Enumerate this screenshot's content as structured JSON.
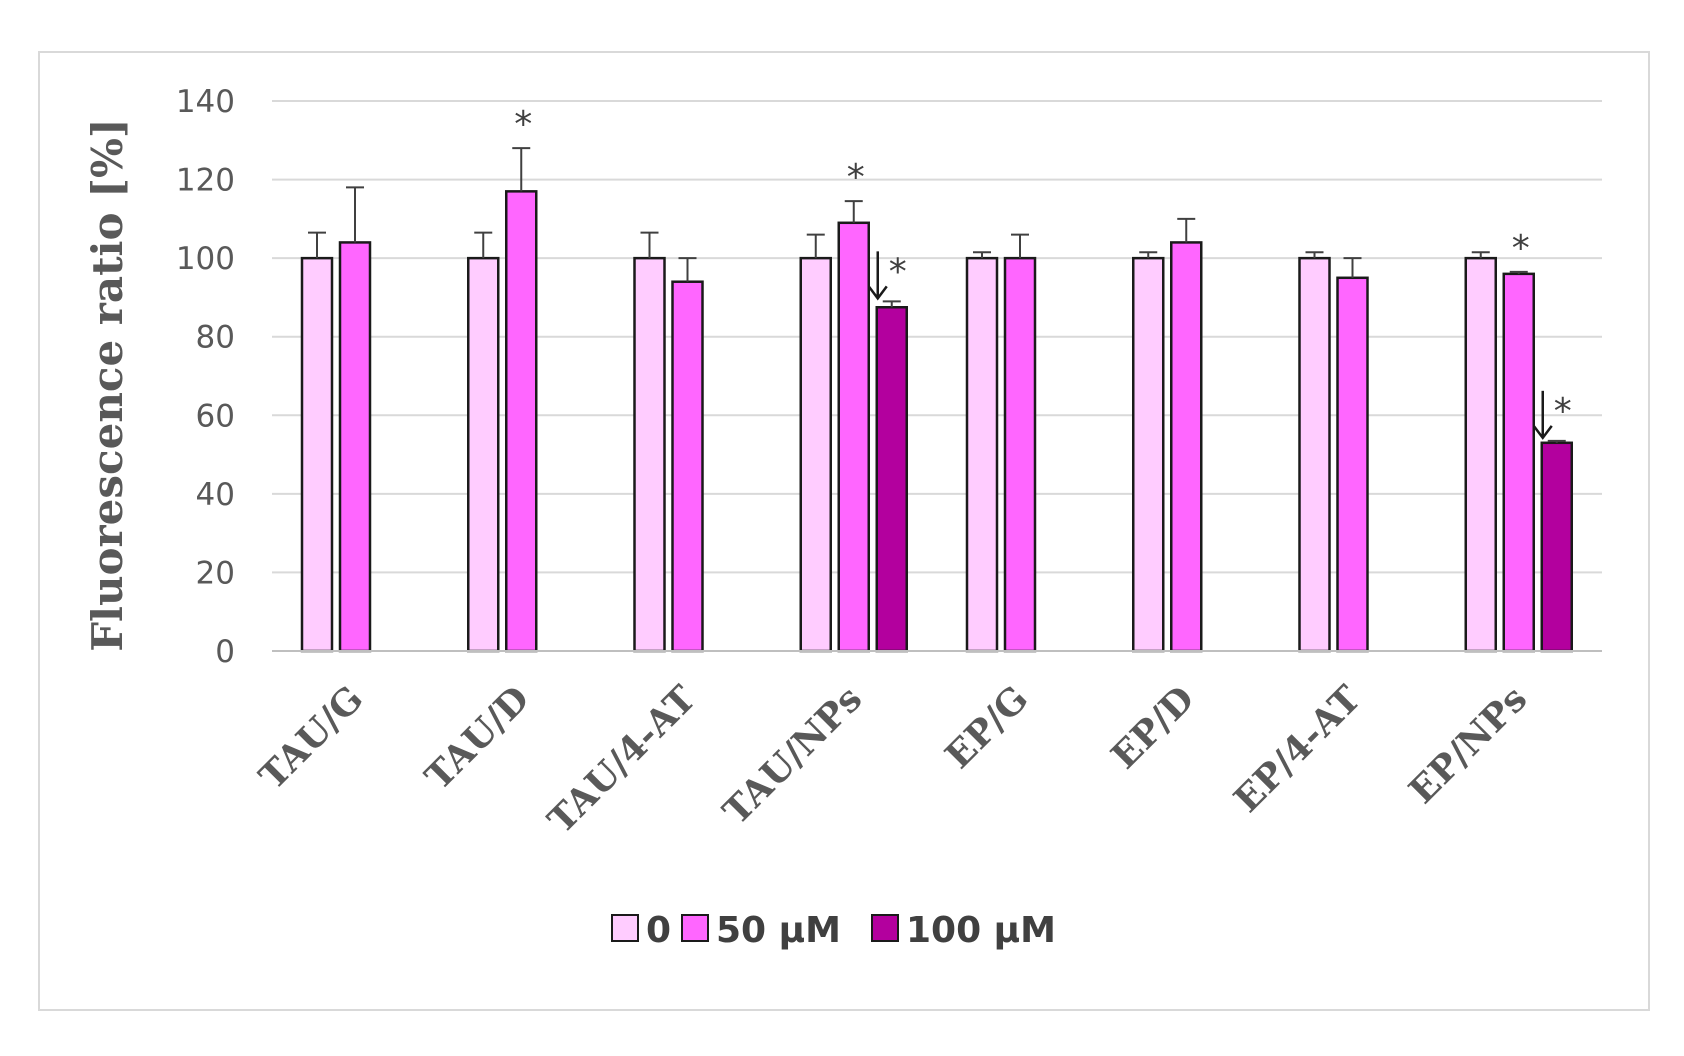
{
  "chart_data": {
    "type": "bar",
    "ylabel": "Fluorescence ratio [%]",
    "xlabel": "",
    "ylim": [
      0,
      140
    ],
    "yticks": [
      0,
      20,
      40,
      60,
      80,
      100,
      120,
      140
    ],
    "grid": true,
    "legend_position": "bottom",
    "categories": [
      "TAU/G",
      "TAU/D",
      "TAU/4-AT",
      "TAU/NPs",
      "EP/G",
      "EP/D",
      "EP/4-AT",
      "EP/NPs"
    ],
    "series": [
      {
        "name": "0",
        "color": "#ffccff",
        "values": [
          100,
          100,
          100,
          100,
          100,
          100,
          100,
          100
        ],
        "errors": [
          6.5,
          6.5,
          6.5,
          6,
          1.5,
          1.5,
          1.5,
          1.5
        ]
      },
      {
        "name": "50 µM",
        "color": "#ff66ff",
        "values": [
          104,
          117,
          94,
          109,
          100,
          104,
          95,
          96
        ],
        "errors": [
          14,
          11,
          6,
          5.5,
          6,
          6,
          5,
          0.5
        ]
      },
      {
        "name": "100 µM",
        "color": "#b3009e",
        "values": [
          null,
          null,
          null,
          87.5,
          null,
          null,
          null,
          53
        ],
        "errors": [
          null,
          null,
          null,
          1.5,
          null,
          null,
          null,
          0.5
        ]
      }
    ],
    "annotations": [
      {
        "category": "TAU/D",
        "series": "50 µM",
        "text": "*"
      },
      {
        "category": "TAU/NPs",
        "series": "50 µM",
        "text": "*"
      },
      {
        "category": "TAU/NPs",
        "series": "100 µM",
        "text": "*",
        "arrow": true
      },
      {
        "category": "EP/NPs",
        "series": "50 µM",
        "text": "*"
      },
      {
        "category": "EP/NPs",
        "series": "100 µM",
        "text": "*",
        "arrow": true
      }
    ]
  }
}
